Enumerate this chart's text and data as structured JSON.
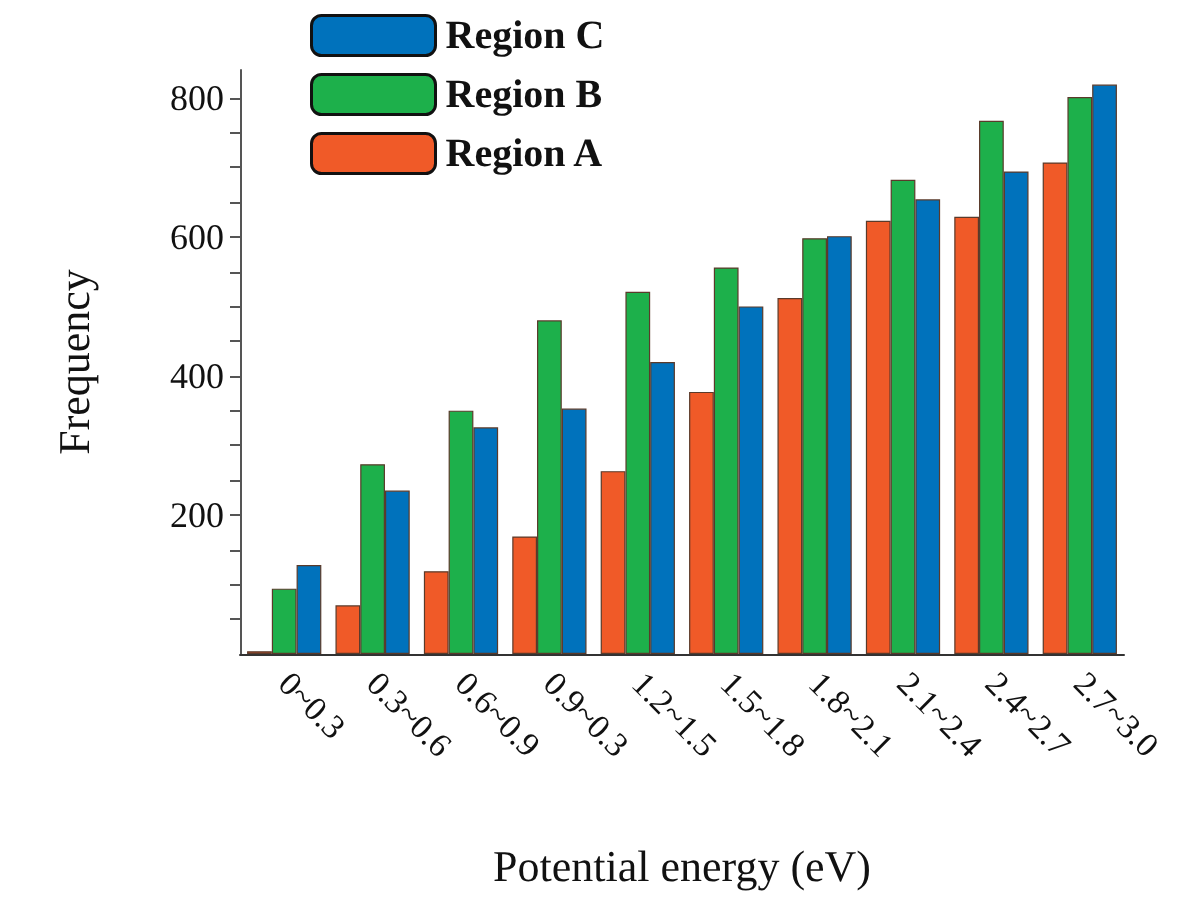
{
  "chart_data": {
    "type": "bar",
    "xlabel": "Potential energy (eV)",
    "ylabel": "Frequency",
    "categories": [
      "0~0.3",
      "0.3~0.6",
      "0.6~0.9",
      "0.9~0.3",
      "1.2~1.5",
      "1.5~1.8",
      "1.8~2.1",
      "2.1~2.4",
      "2.4~2.7",
      "2.7~3.0"
    ],
    "series": [
      {
        "name": "Region A",
        "color": "#f05a28",
        "values": [
          4,
          70,
          119,
          169,
          263,
          377,
          512,
          623,
          629,
          707
        ]
      },
      {
        "name": "Region B",
        "color": "#1db04b",
        "values": [
          94,
          273,
          350,
          480,
          521,
          556,
          598,
          682,
          767,
          801
        ]
      },
      {
        "name": "Region C",
        "color": "#0072bc",
        "values": [
          128,
          235,
          326,
          353,
          420,
          500,
          601,
          654,
          694,
          819
        ]
      }
    ],
    "ylim": [
      0,
      840
    ],
    "yticks": [
      {
        "value": 50,
        "label": null
      },
      {
        "value": 100,
        "label": null
      },
      {
        "value": 150,
        "label": null
      },
      200,
      {
        "value": 250,
        "label": null
      },
      {
        "value": 300,
        "label": null
      },
      {
        "value": 350,
        "label": null
      },
      400,
      {
        "value": 450,
        "label": null
      },
      {
        "value": 500,
        "label": null
      },
      {
        "value": 550,
        "label": null
      },
      600,
      {
        "value": 650,
        "label": null
      },
      {
        "value": 700,
        "label": null
      },
      {
        "value": 750,
        "label": null
      },
      800
    ],
    "grid": false,
    "legend": "top left"
  }
}
